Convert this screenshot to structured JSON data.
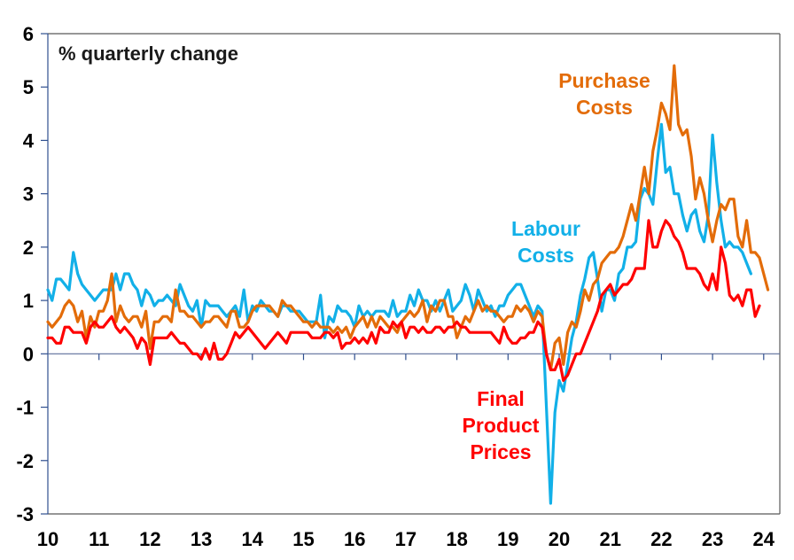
{
  "chart_data": {
    "type": "line",
    "title": "",
    "unit_label": "% quarterly change",
    "xlabel": "",
    "ylabel": "",
    "x_start": 2010.0,
    "x_step_years": 0.0833333,
    "xlim": [
      10,
      24.5
    ],
    "ylim": [
      -3,
      6
    ],
    "x_ticks": [
      "10",
      "11",
      "12",
      "13",
      "14",
      "15",
      "16",
      "17",
      "18",
      "19",
      "20",
      "21",
      "22",
      "23",
      "24"
    ],
    "y_ticks": [
      "6",
      "5",
      "4",
      "3",
      "2",
      "1",
      "0",
      "-1",
      "-2",
      "-3"
    ],
    "grid": false,
    "legend": "inline labels",
    "series": [
      {
        "name": "Labour Costs",
        "label_lines": [
          "Labour",
          "Costs"
        ],
        "color": "#12B0E8",
        "values": [
          1.2,
          1.0,
          1.4,
          1.4,
          1.3,
          1.2,
          1.9,
          1.5,
          1.3,
          1.2,
          1.1,
          1.0,
          1.1,
          1.2,
          1.2,
          1.2,
          1.5,
          1.2,
          1.5,
          1.5,
          1.3,
          1.2,
          0.9,
          1.2,
          1.1,
          0.9,
          1.0,
          1.0,
          1.1,
          1.0,
          0.9,
          1.3,
          1.1,
          0.9,
          0.8,
          1.0,
          0.5,
          1.0,
          0.9,
          0.9,
          0.9,
          0.8,
          0.7,
          0.8,
          0.9,
          0.7,
          1.2,
          0.6,
          0.9,
          0.8,
          1.0,
          0.9,
          0.8,
          0.8,
          0.7,
          0.9,
          0.9,
          0.8,
          0.8,
          0.8,
          0.7,
          0.6,
          0.6,
          0.6,
          1.1,
          0.3,
          0.7,
          0.6,
          0.9,
          0.8,
          0.8,
          0.7,
          0.5,
          0.9,
          0.7,
          0.8,
          0.7,
          0.8,
          0.8,
          0.8,
          0.7,
          1.0,
          0.7,
          0.8,
          0.8,
          1.1,
          0.9,
          1.2,
          1.0,
          1.0,
          0.8,
          1.0,
          0.8,
          1.0,
          1.2,
          0.8,
          0.9,
          1.0,
          1.3,
          1.1,
          0.8,
          1.2,
          1.0,
          0.8,
          0.9,
          0.7,
          0.9,
          0.9,
          1.1,
          1.2,
          1.3,
          1.3,
          1.1,
          0.9,
          0.7,
          0.9,
          0.8,
          -1.0,
          -2.8,
          -1.1,
          -0.5,
          -0.7,
          -0.2,
          0.3,
          0.6,
          1.1,
          1.4,
          1.8,
          1.9,
          1.4,
          0.8,
          1.2,
          1.2,
          1.0,
          1.5,
          1.6,
          2.0,
          2.0,
          2.1,
          2.9,
          3.1,
          3.0,
          2.8,
          3.6,
          4.3,
          3.4,
          3.5,
          3.0,
          3.0,
          2.6,
          2.3,
          2.6,
          2.7,
          2.3,
          2.1,
          2.6,
          4.1,
          3.2,
          2.5,
          2.0,
          2.1,
          2.0,
          2.0,
          1.9,
          1.7,
          1.5
        ]
      },
      {
        "name": "Purchase Costs",
        "label_lines": [
          "Purchase",
          "Costs"
        ],
        "color": "#E36C09",
        "values": [
          0.6,
          0.5,
          0.6,
          0.7,
          0.9,
          1.0,
          0.9,
          0.6,
          0.8,
          0.3,
          0.7,
          0.5,
          0.8,
          0.8,
          1.0,
          1.5,
          0.6,
          0.9,
          0.7,
          0.6,
          0.7,
          0.7,
          0.5,
          0.8,
          0.1,
          0.6,
          0.6,
          0.7,
          0.7,
          0.6,
          1.2,
          0.8,
          0.8,
          0.7,
          0.7,
          0.6,
          0.5,
          0.6,
          0.6,
          0.7,
          0.7,
          0.6,
          0.5,
          0.8,
          0.8,
          0.5,
          0.5,
          0.6,
          0.8,
          0.9,
          0.9,
          0.9,
          0.9,
          0.8,
          0.7,
          1.0,
          0.9,
          0.9,
          0.8,
          0.7,
          0.6,
          0.6,
          0.5,
          0.6,
          0.5,
          0.5,
          0.5,
          0.4,
          0.5,
          0.4,
          0.5,
          0.3,
          0.5,
          0.6,
          0.7,
          0.5,
          0.7,
          0.5,
          0.7,
          0.6,
          0.5,
          0.5,
          0.4,
          0.6,
          0.7,
          0.8,
          0.7,
          0.8,
          1.0,
          0.6,
          0.9,
          0.8,
          1.0,
          1.0,
          0.7,
          0.7,
          0.3,
          0.5,
          0.7,
          0.6,
          0.8,
          1.0,
          0.8,
          0.9,
          0.8,
          0.8,
          0.7,
          0.6,
          0.7,
          0.7,
          0.9,
          0.8,
          0.9,
          0.8,
          0.6,
          0.8,
          0.7,
          0.0,
          -0.3,
          0.2,
          0.3,
          -0.2,
          0.4,
          0.6,
          0.5,
          0.8,
          1.2,
          1.0,
          1.3,
          1.4,
          1.7,
          1.8,
          1.9,
          1.9,
          2.0,
          2.2,
          2.5,
          2.8,
          2.5,
          3.0,
          3.5,
          3.0,
          3.8,
          4.2,
          4.7,
          4.5,
          4.2,
          5.4,
          4.3,
          4.1,
          4.2,
          3.7,
          2.9,
          3.3,
          3.0,
          2.5,
          2.1,
          2.5,
          2.8,
          2.7,
          2.9,
          2.9,
          2.2,
          2.0,
          2.5,
          1.9,
          1.9,
          1.8,
          1.5,
          1.2
        ]
      },
      {
        "name": "Final Product Prices",
        "label_lines": [
          "Final",
          "Product",
          "Prices"
        ],
        "color": "#FF0000",
        "values": [
          0.3,
          0.3,
          0.2,
          0.2,
          0.5,
          0.5,
          0.4,
          0.4,
          0.4,
          0.2,
          0.5,
          0.6,
          0.5,
          0.5,
          0.6,
          0.7,
          0.5,
          0.4,
          0.5,
          0.4,
          0.3,
          0.1,
          0.3,
          0.2,
          -0.2,
          0.3,
          0.3,
          0.3,
          0.3,
          0.4,
          0.3,
          0.2,
          0.2,
          0.1,
          0.0,
          0.0,
          -0.1,
          0.1,
          -0.1,
          0.2,
          -0.1,
          -0.1,
          0.0,
          0.2,
          0.4,
          0.3,
          0.4,
          0.5,
          0.4,
          0.3,
          0.2,
          0.1,
          0.2,
          0.3,
          0.4,
          0.3,
          0.2,
          0.4,
          0.4,
          0.4,
          0.4,
          0.4,
          0.3,
          0.3,
          0.3,
          0.4,
          0.4,
          0.3,
          0.4,
          0.1,
          0.2,
          0.2,
          0.3,
          0.2,
          0.3,
          0.2,
          0.4,
          0.2,
          0.5,
          0.4,
          0.4,
          0.6,
          0.5,
          0.6,
          0.3,
          0.5,
          0.5,
          0.4,
          0.5,
          0.4,
          0.4,
          0.5,
          0.5,
          0.4,
          0.5,
          0.5,
          0.6,
          0.5,
          0.5,
          0.4,
          0.4,
          0.4,
          0.4,
          0.4,
          0.4,
          0.3,
          0.2,
          0.5,
          0.3,
          0.2,
          0.2,
          0.3,
          0.3,
          0.4,
          0.4,
          0.6,
          0.5,
          0.0,
          -0.3,
          -0.3,
          -0.1,
          -0.5,
          -0.4,
          -0.2,
          0.0,
          0.0,
          0.2,
          0.4,
          0.6,
          0.8,
          1.1,
          1.2,
          1.3,
          1.1,
          1.2,
          1.3,
          1.3,
          1.4,
          1.6,
          1.6,
          1.6,
          2.5,
          2.0,
          2.0,
          2.3,
          2.5,
          2.4,
          2.2,
          2.1,
          1.9,
          1.6,
          1.6,
          1.6,
          1.5,
          1.3,
          1.2,
          1.5,
          1.2,
          2.0,
          1.7,
          1.1,
          1.0,
          1.1,
          0.9,
          1.2,
          1.2,
          0.7,
          0.9
        ]
      }
    ]
  }
}
